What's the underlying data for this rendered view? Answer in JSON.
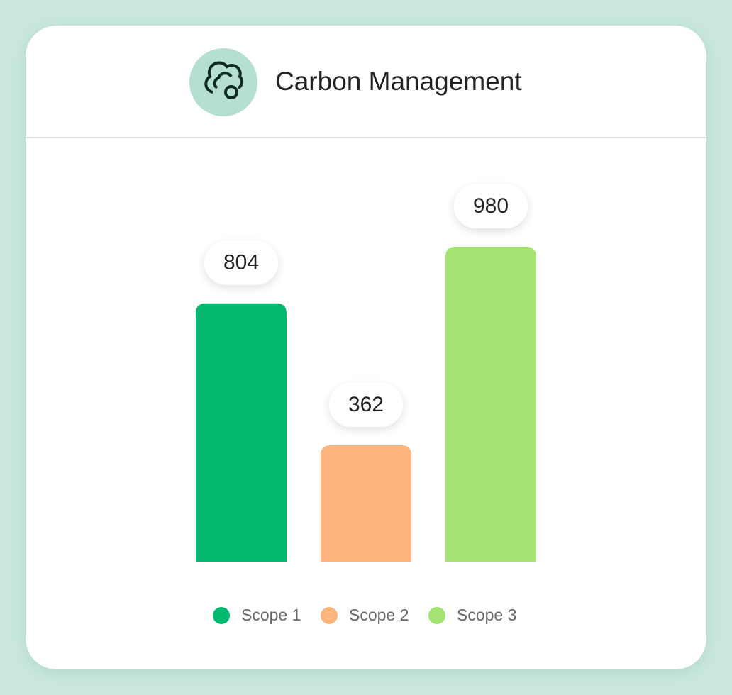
{
  "chart_data": {
    "type": "bar",
    "title": "Carbon Management",
    "categories": [
      "Scope 1",
      "Scope 2",
      "Scope 3"
    ],
    "values": [
      804,
      362,
      980
    ],
    "colors": [
      "#02b96f",
      "#ffb67e",
      "#a5e473"
    ]
  }
}
